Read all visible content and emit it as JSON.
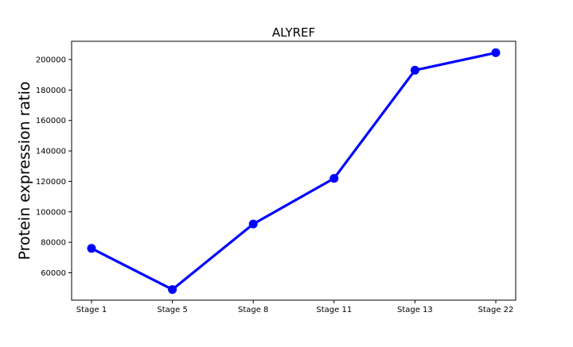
{
  "chart_data": {
    "type": "line",
    "title": "ALYREF",
    "xlabel": "",
    "ylabel": "Protein expression ratio",
    "categories": [
      "Stage 1",
      "Stage 5",
      "Stage 8",
      "Stage 11",
      "Stage 13",
      "Stage 22"
    ],
    "series": [
      {
        "values": [
          76000,
          49000,
          92000,
          122000,
          193000,
          204500
        ],
        "color": "#0000ff",
        "marker": "circle"
      }
    ],
    "yticks": [
      60000,
      80000,
      100000,
      120000,
      140000,
      160000,
      180000,
      200000
    ],
    "ylim": [
      42000,
      212000
    ],
    "grid": false,
    "legend": "none"
  }
}
